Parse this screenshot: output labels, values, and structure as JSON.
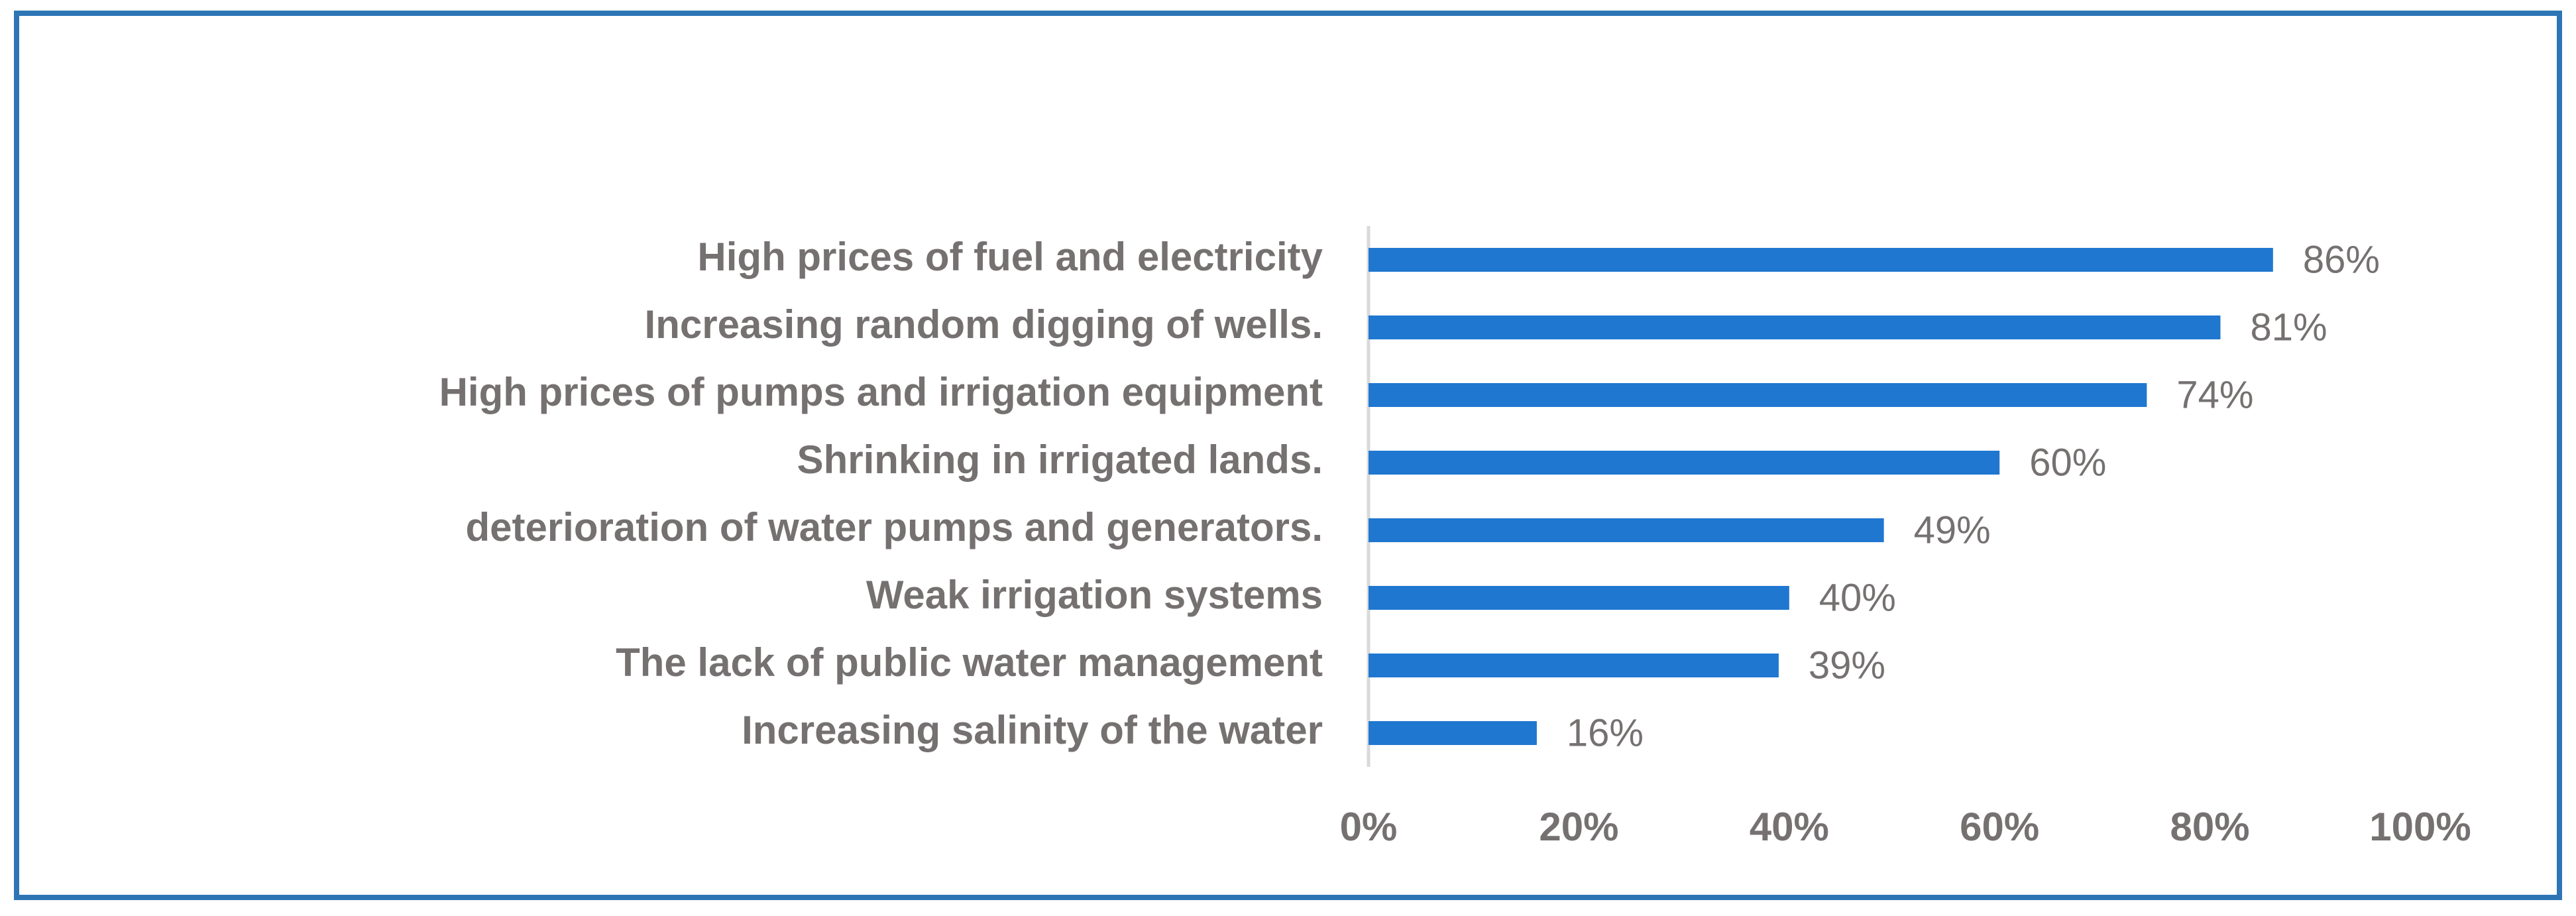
{
  "chart_data": {
    "type": "bar",
    "orientation": "horizontal",
    "categories": [
      "High prices of fuel and electricity",
      "Increasing random digging of wells.",
      "High prices of pumps and irrigation equipment",
      "Shrinking in irrigated lands.",
      "deterioration of water pumps and generators.",
      "Weak irrigation systems",
      "The lack of public water management",
      "Increasing salinity of the water"
    ],
    "values": [
      86,
      81,
      74,
      60,
      49,
      40,
      39,
      16
    ],
    "value_labels": [
      "86%",
      "81%",
      "74%",
      "60%",
      "49%",
      "40%",
      "39%",
      "16%"
    ],
    "color": "#1f77d0",
    "xlim": [
      0,
      100
    ],
    "xticks": [
      {
        "value": 0,
        "label": "0%"
      },
      {
        "value": 20,
        "label": "20%"
      },
      {
        "value": 40,
        "label": "40%"
      },
      {
        "value": 60,
        "label": "60%"
      },
      {
        "value": 80,
        "label": "80%"
      },
      {
        "value": 100,
        "label": "100%"
      }
    ],
    "grid": false
  }
}
